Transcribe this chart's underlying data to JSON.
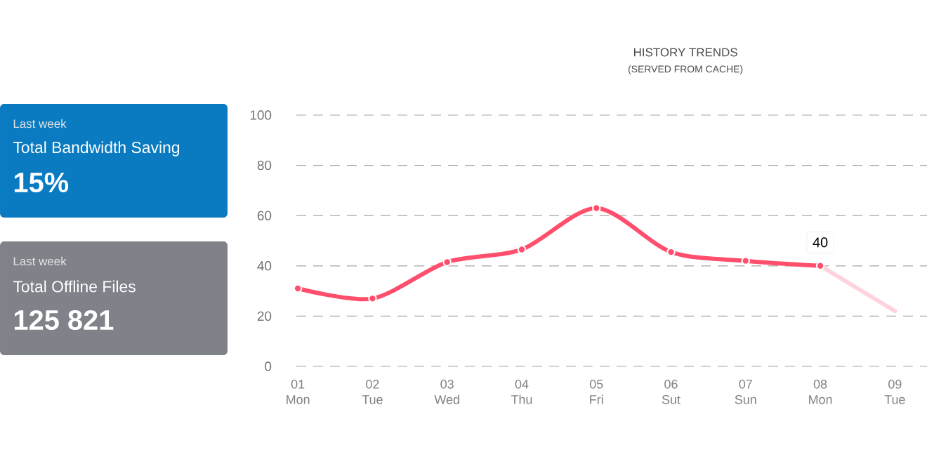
{
  "chart_data": [
    {
      "type": "other",
      "subtitle": "Last week",
      "title": "Total Bandwidth Saving",
      "annotations": [
        "15%"
      ],
      "color": "#0a7bc1"
    },
    {
      "type": "other",
      "subtitle": "Last week",
      "title": "Total Offline Files",
      "annotations": [
        "125 821"
      ],
      "color": "#80828a"
    },
    {
      "type": "line",
      "title": "HISTORY TRENDS",
      "subtitle": "(SERVED FROM CACHE)",
      "categories": [
        "01 Mon",
        "02 Tue",
        "03 Wed",
        "04 Thu",
        "05 Fri",
        "06 Sut",
        "07 Sun",
        "08 Mon",
        "09 Tue"
      ],
      "series": [
        {
          "color": "#ff4f6c",
          "values": [
            31,
            27,
            41.5,
            46.5,
            63,
            45.5,
            42,
            40,
            null
          ],
          "value_labels": [
            null,
            null,
            null,
            null,
            null,
            null,
            null,
            "40",
            null
          ]
        },
        {
          "color": "#ffd3dc",
          "marker": "none",
          "values": [
            null,
            null,
            null,
            null,
            null,
            null,
            null,
            40,
            22
          ]
        }
      ],
      "ylim": [
        0,
        100
      ],
      "yticks": [
        0,
        20,
        40,
        60,
        80,
        100
      ],
      "grid": "y",
      "marker": "circle",
      "line_style": "solid"
    }
  ]
}
